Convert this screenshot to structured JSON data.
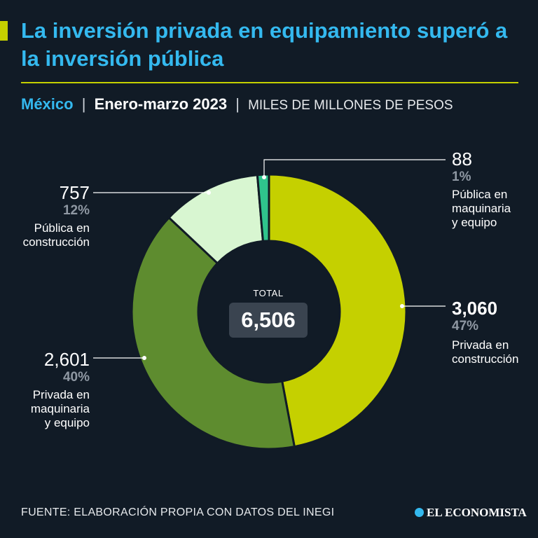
{
  "header": {
    "title": "La inversión privada en equipamiento superó a la inversión pública",
    "region": "México",
    "separator": "|",
    "period": "Enero-marzo 2023",
    "units": "MILES DE MILLONES DE PESOS"
  },
  "colors": {
    "title": "#34b9ef",
    "accent": "#c5d000",
    "background": "#111b26"
  },
  "chart_data": {
    "type": "pie",
    "donut": true,
    "title": "La inversión privada en equipamiento superó a la inversión pública",
    "subtitle": "México | Enero-marzo 2023 | MILES DE MILLONES DE PESOS",
    "total_label": "TOTAL",
    "total_value": "6,506",
    "slices": [
      {
        "name": "Privada en construcción",
        "value": 3060,
        "value_label": "3,060",
        "pct_label": "47%",
        "color": "#c5d000"
      },
      {
        "name": "Privada en maquinaria y equipo",
        "value": 2601,
        "value_label": "2,601",
        "pct_label": "40%",
        "color": "#5e8c2f"
      },
      {
        "name": "Pública en construcción",
        "value": 757,
        "value_label": "757",
        "pct_label": "12%",
        "color": "#d8f6d1"
      },
      {
        "name": "Pública en maquinaria y equipo",
        "value": 88,
        "value_label": "88",
        "pct_label": "1%",
        "color": "#2fc48c"
      }
    ]
  },
  "labels": {
    "s0": {
      "value": "3,060",
      "pct": "47%",
      "line1": "Privada en",
      "line2": "construcción"
    },
    "s1": {
      "value": "2,601",
      "pct": "40%",
      "line1": "Privada en",
      "line2": "maquinaria",
      "line3": "y equipo"
    },
    "s2": {
      "value": "757",
      "pct": "12%",
      "line1": "Pública en",
      "line2": "construcción"
    },
    "s3": {
      "value": "88",
      "pct": "1%",
      "line1": "Pública en",
      "line2": "maquinaria",
      "line3": "y equipo"
    }
  },
  "footer": {
    "source": "FUENTE: ELABORACIÓN PROPIA CON DATOS DEL INEGI",
    "brand": "EL ECONOMISTA"
  }
}
